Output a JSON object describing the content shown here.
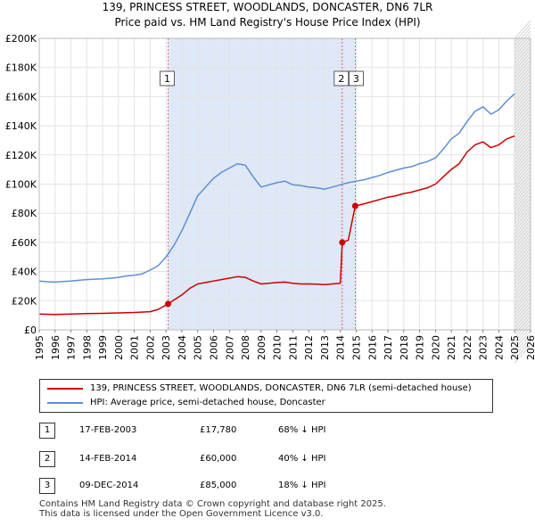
{
  "title_line1": "139, PRINCESS STREET, WOODLANDS, DONCASTER, DN6 7LR",
  "title_line2": "Price paid vs. HM Land Registry's House Price Index (HPI)",
  "colors": {
    "property": "#cc0000",
    "hpi": "#5b8fd4",
    "shade": "#dfe8f7"
  },
  "legend": {
    "property_label": "139, PRINCESS STREET, WOODLANDS, DONCASTER, DN6 7LR (semi-detached house)",
    "hpi_label": "HPI: Average price, semi-detached house, Doncaster"
  },
  "transactions": [
    {
      "num": "1",
      "date": "17-FEB-2003",
      "price": "£17,780",
      "hpi": "68% ↓ HPI"
    },
    {
      "num": "2",
      "date": "14-FEB-2014",
      "price": "£60,000",
      "hpi": "40% ↓ HPI"
    },
    {
      "num": "3",
      "date": "09-DEC-2014",
      "price": "£85,000",
      "hpi": "18% ↓ HPI"
    }
  ],
  "footer_line1": "Contains HM Land Registry data © Crown copyright and database right 2025.",
  "footer_line2": "This data is licensed under the Open Government Licence v3.0.",
  "chart_data": {
    "type": "line",
    "title": "Price paid vs. HM Land Registry's House Price Index (HPI)",
    "xlim": [
      1995,
      2026
    ],
    "ylim": [
      0,
      200000
    ],
    "x_ticks": [
      "1995",
      "1996",
      "1997",
      "1998",
      "1999",
      "2000",
      "2001",
      "2002",
      "2003",
      "2004",
      "2005",
      "2006",
      "2007",
      "2008",
      "2009",
      "2010",
      "2011",
      "2012",
      "2013",
      "2014",
      "2015",
      "2016",
      "2017",
      "2018",
      "2019",
      "2020",
      "2021",
      "2022",
      "2023",
      "2024",
      "2025",
      "2026"
    ],
    "y_ticks": [
      {
        "value": 0,
        "label": "£0"
      },
      {
        "value": 20000,
        "label": "£20K"
      },
      {
        "value": 40000,
        "label": "£40K"
      },
      {
        "value": 60000,
        "label": "£60K"
      },
      {
        "value": 80000,
        "label": "£80K"
      },
      {
        "value": 100000,
        "label": "£100K"
      },
      {
        "value": 120000,
        "label": "£120K"
      },
      {
        "value": 140000,
        "label": "£140K"
      },
      {
        "value": 160000,
        "label": "£160K"
      },
      {
        "value": 180000,
        "label": "£180K"
      },
      {
        "value": 200000,
        "label": "£200K"
      }
    ],
    "shaded_period": [
      2003.13,
      2014.94
    ],
    "future_hatch_start": 2025.0,
    "sale_markers": [
      {
        "label": "1",
        "x": 2003.13,
        "y": 17780
      },
      {
        "label": "2",
        "x": 2014.12,
        "y": 60000
      },
      {
        "label": "3",
        "x": 2014.94,
        "y": 85000
      }
    ],
    "series": [
      {
        "name": "HPI: Average price, semi-detached house, Doncaster",
        "color": "#5b8fd4",
        "points": [
          [
            1995.0,
            33500
          ],
          [
            1995.5,
            33000
          ],
          [
            1996.0,
            32800
          ],
          [
            1996.5,
            33200
          ],
          [
            1997.0,
            33500
          ],
          [
            1997.5,
            34000
          ],
          [
            1998.0,
            34500
          ],
          [
            1998.5,
            34800
          ],
          [
            1999.0,
            35000
          ],
          [
            1999.5,
            35500
          ],
          [
            2000.0,
            36000
          ],
          [
            2000.5,
            37000
          ],
          [
            2001.0,
            37500
          ],
          [
            2001.5,
            38500
          ],
          [
            2002.0,
            41000
          ],
          [
            2002.5,
            44000
          ],
          [
            2003.0,
            50000
          ],
          [
            2003.5,
            58000
          ],
          [
            2004.0,
            68000
          ],
          [
            2004.5,
            80000
          ],
          [
            2005.0,
            92000
          ],
          [
            2005.5,
            98000
          ],
          [
            2006.0,
            104000
          ],
          [
            2006.5,
            108000
          ],
          [
            2007.0,
            111000
          ],
          [
            2007.5,
            114000
          ],
          [
            2008.0,
            113000
          ],
          [
            2008.5,
            105000
          ],
          [
            2009.0,
            98000
          ],
          [
            2009.5,
            99500
          ],
          [
            2010.0,
            101000
          ],
          [
            2010.5,
            102000
          ],
          [
            2011.0,
            99500
          ],
          [
            2011.5,
            99000
          ],
          [
            2012.0,
            98000
          ],
          [
            2012.5,
            97500
          ],
          [
            2013.0,
            96500
          ],
          [
            2013.5,
            98000
          ],
          [
            2014.0,
            99500
          ],
          [
            2014.5,
            101000
          ],
          [
            2015.0,
            102000
          ],
          [
            2015.5,
            103000
          ],
          [
            2016.0,
            104500
          ],
          [
            2016.5,
            106000
          ],
          [
            2017.0,
            108000
          ],
          [
            2017.5,
            109500
          ],
          [
            2018.0,
            111000
          ],
          [
            2018.5,
            112000
          ],
          [
            2019.0,
            114000
          ],
          [
            2019.5,
            115500
          ],
          [
            2020.0,
            118000
          ],
          [
            2020.5,
            124000
          ],
          [
            2021.0,
            131000
          ],
          [
            2021.5,
            135000
          ],
          [
            2022.0,
            143000
          ],
          [
            2022.5,
            150000
          ],
          [
            2023.0,
            153000
          ],
          [
            2023.5,
            148000
          ],
          [
            2024.0,
            151000
          ],
          [
            2024.5,
            157000
          ],
          [
            2025.0,
            162000
          ]
        ]
      },
      {
        "name": "139, PRINCESS STREET, WOODLANDS, DONCASTER, DN6 7LR (semi-detached house)",
        "color": "#cc0000",
        "points": [
          [
            1995.0,
            10800
          ],
          [
            1996.0,
            10600
          ],
          [
            1997.0,
            10900
          ],
          [
            1998.0,
            11200
          ],
          [
            1999.0,
            11300
          ],
          [
            2000.0,
            11600
          ],
          [
            2001.0,
            11900
          ],
          [
            2002.0,
            12500
          ],
          [
            2002.5,
            14000
          ],
          [
            2003.13,
            17780
          ],
          [
            2003.5,
            20500
          ],
          [
            2004.0,
            24000
          ],
          [
            2004.5,
            28500
          ],
          [
            2005.0,
            31500
          ],
          [
            2005.5,
            32500
          ],
          [
            2006.0,
            33500
          ],
          [
            2006.5,
            34500
          ],
          [
            2007.0,
            35500
          ],
          [
            2007.5,
            36500
          ],
          [
            2008.0,
            36000
          ],
          [
            2008.5,
            33500
          ],
          [
            2009.0,
            31500
          ],
          [
            2009.5,
            32000
          ],
          [
            2010.0,
            32500
          ],
          [
            2010.5,
            32800
          ],
          [
            2011.0,
            32000
          ],
          [
            2011.5,
            31500
          ],
          [
            2012.0,
            31500
          ],
          [
            2012.5,
            31300
          ],
          [
            2013.0,
            31000
          ],
          [
            2013.5,
            31500
          ],
          [
            2014.0,
            32000
          ],
          [
            2014.12,
            60000
          ],
          [
            2014.5,
            61500
          ],
          [
            2014.94,
            85000
          ],
          [
            2015.5,
            86500
          ],
          [
            2016.0,
            88000
          ],
          [
            2016.5,
            89500
          ],
          [
            2017.0,
            91000
          ],
          [
            2017.5,
            92000
          ],
          [
            2018.0,
            93500
          ],
          [
            2018.5,
            94500
          ],
          [
            2019.0,
            96000
          ],
          [
            2019.5,
            97500
          ],
          [
            2020.0,
            100000
          ],
          [
            2020.5,
            105000
          ],
          [
            2021.0,
            110000
          ],
          [
            2021.5,
            114000
          ],
          [
            2022.0,
            122000
          ],
          [
            2022.5,
            127000
          ],
          [
            2023.0,
            129000
          ],
          [
            2023.5,
            125000
          ],
          [
            2024.0,
            127000
          ],
          [
            2024.5,
            131000
          ],
          [
            2025.0,
            133000
          ]
        ]
      }
    ]
  }
}
